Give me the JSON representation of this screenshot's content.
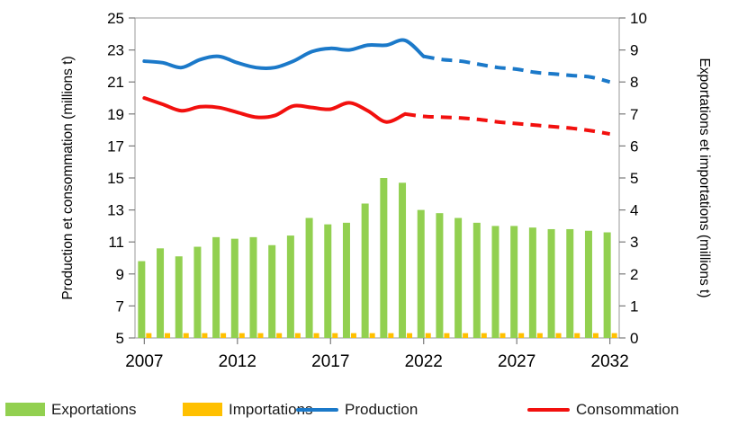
{
  "chart_data": {
    "type": "bar+line",
    "years": [
      2007,
      2008,
      2009,
      2010,
      2011,
      2012,
      2013,
      2014,
      2015,
      2016,
      2017,
      2018,
      2019,
      2020,
      2021,
      2022,
      2023,
      2024,
      2025,
      2026,
      2027,
      2028,
      2029,
      2030,
      2031,
      2032
    ],
    "x_tick_labels": [
      2007,
      2012,
      2017,
      2022,
      2027,
      2032
    ],
    "left_axis": {
      "title": "Production et consommation (millions t)",
      "min": 5,
      "max": 25,
      "step": 2
    },
    "right_axis": {
      "title": "Exportations et importations (millions t)",
      "min": 0,
      "max": 10,
      "step": 1
    },
    "series": [
      {
        "name": "Exportations",
        "type": "bar",
        "axis": "right",
        "color": "#92D050",
        "values": [
          2.4,
          2.8,
          2.55,
          2.85,
          3.15,
          3.1,
          3.15,
          2.9,
          3.2,
          3.75,
          3.55,
          3.6,
          4.2,
          5.0,
          4.85,
          4.0,
          3.9,
          3.75,
          3.6,
          3.5,
          3.5,
          3.45,
          3.4,
          3.4,
          3.35,
          3.3
        ]
      },
      {
        "name": "Importations",
        "type": "bar",
        "axis": "right",
        "color": "#FFC000",
        "values": [
          0.15,
          0.15,
          0.15,
          0.15,
          0.15,
          0.15,
          0.15,
          0.15,
          0.15,
          0.15,
          0.15,
          0.15,
          0.15,
          0.15,
          0.15,
          0.15,
          0.15,
          0.15,
          0.15,
          0.15,
          0.15,
          0.15,
          0.15,
          0.15,
          0.15,
          0.15
        ]
      },
      {
        "name": "Production",
        "type": "line",
        "axis": "left",
        "color": "#1B79C9",
        "forecast_from": 2022,
        "values": [
          22.3,
          22.2,
          21.9,
          22.4,
          22.6,
          22.2,
          21.9,
          21.9,
          22.3,
          22.9,
          23.1,
          23.0,
          23.3,
          23.3,
          23.6,
          22.6,
          22.4,
          22.3,
          22.1,
          21.9,
          21.8,
          21.6,
          21.5,
          21.4,
          21.3,
          21.0
        ]
      },
      {
        "name": "Consommation",
        "type": "line",
        "axis": "left",
        "color": "#F2100E",
        "forecast_from": 2021,
        "values": [
          20.0,
          19.6,
          19.2,
          19.45,
          19.4,
          19.1,
          18.8,
          18.9,
          19.5,
          19.4,
          19.3,
          19.7,
          19.2,
          18.5,
          19.0,
          18.85,
          18.8,
          18.75,
          18.65,
          18.5,
          18.4,
          18.3,
          18.2,
          18.1,
          17.95,
          17.75
        ]
      }
    ],
    "legend": [
      "Exportations",
      "Importations",
      "Production",
      "Consommation"
    ]
  }
}
